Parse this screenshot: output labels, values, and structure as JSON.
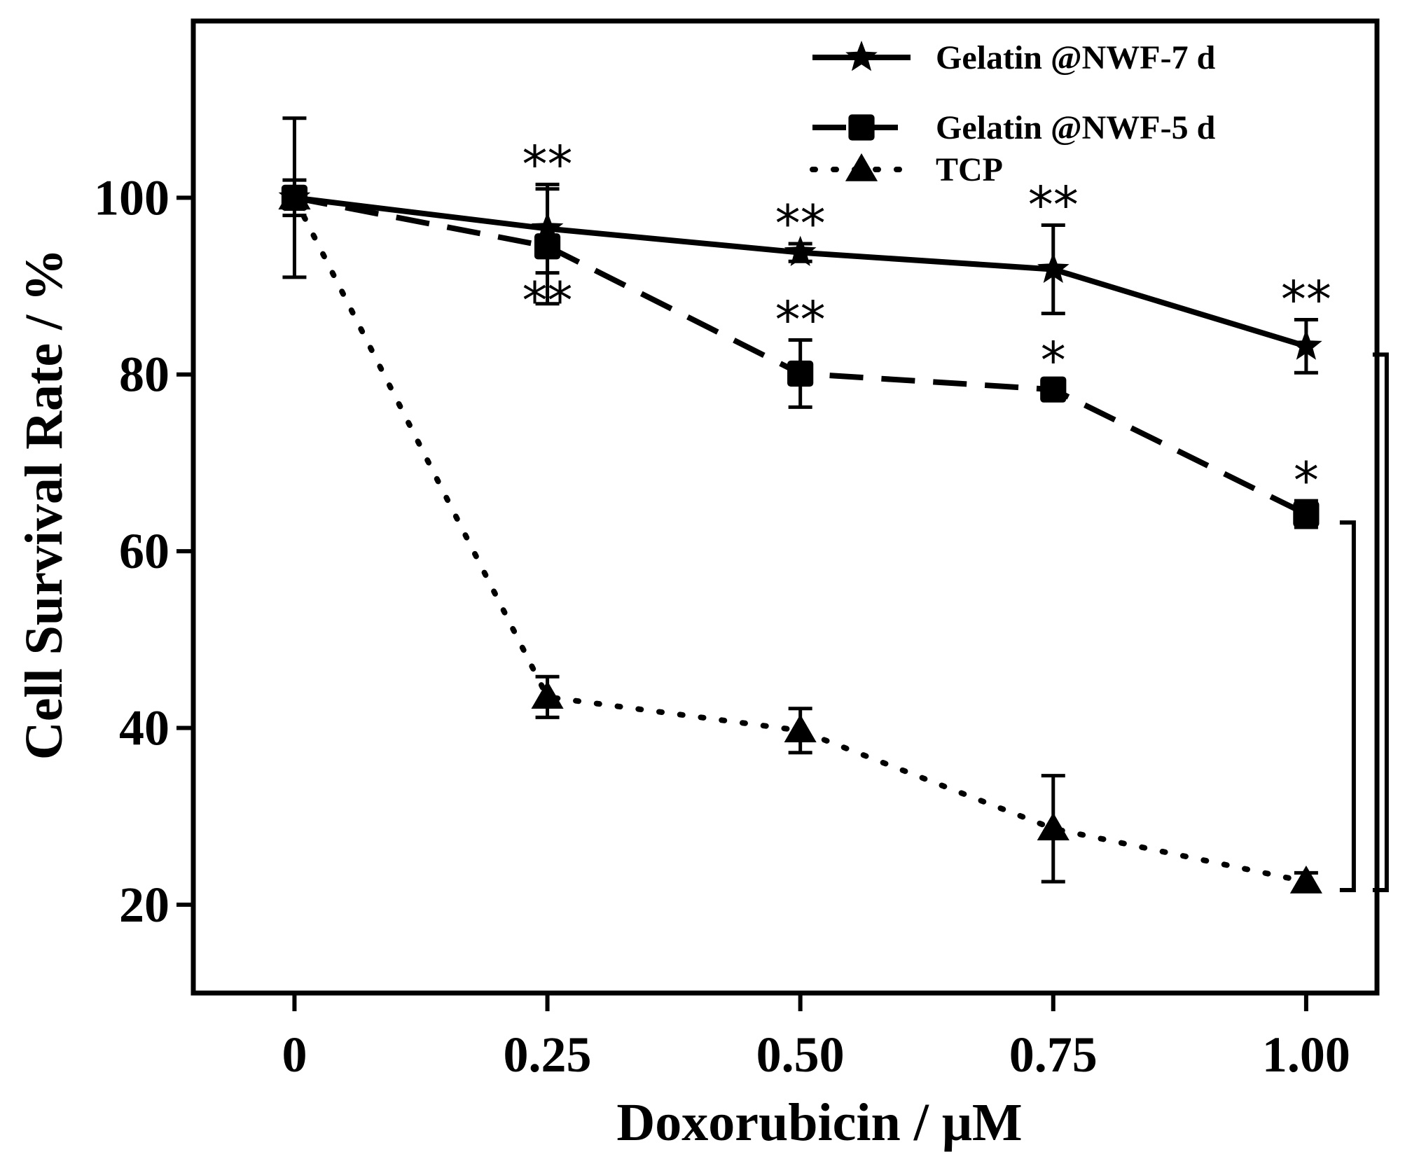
{
  "chart_data": {
    "type": "line",
    "xlabel": "Doxorubicin / μM",
    "ylabel": "Cell Survival Rate / %",
    "x_tick_labels": [
      "0",
      "0.25",
      "0.50",
      "0.75",
      "1.00"
    ],
    "x": [
      0,
      0.25,
      0.5,
      0.75,
      1.0
    ],
    "xlim": [
      -0.1,
      1.07
    ],
    "y_ticks": [
      20,
      40,
      60,
      80,
      100
    ],
    "ylim": [
      10,
      120
    ],
    "grid": false,
    "legend_position": "top-right",
    "series": [
      {
        "name": "Gelatin @NWF-7 d",
        "marker": "star",
        "line_style": "solid",
        "values": [
          100,
          96.5,
          93.8,
          91.9,
          83.2
        ],
        "errors": [
          9,
          5,
          1,
          5,
          3
        ],
        "significance": [
          "",
          "**",
          "**",
          "**",
          "**"
        ]
      },
      {
        "name": "Gelatin @NWF-5 d",
        "marker": "square",
        "line_style": "dashed",
        "values": [
          100,
          94.5,
          80.1,
          78.3,
          64.2
        ],
        "errors": [
          2,
          6.5,
          3.8,
          1,
          1.5
        ],
        "significance": [
          "",
          "**",
          "**",
          "*",
          "*"
        ]
      },
      {
        "name": "TCP",
        "marker": "triangle",
        "line_style": "dotted",
        "values": [
          100,
          43.5,
          39.7,
          28.6,
          22.6
        ],
        "errors": [
          1,
          2.3,
          2.5,
          6,
          1
        ],
        "significance": [
          "",
          "",
          "",
          "",
          ""
        ]
      }
    ],
    "comparison_brackets": [
      {
        "from": "Gelatin @NWF-7 d",
        "to": "TCP",
        "at_x": 1.0
      },
      {
        "from": "Gelatin @NWF-5 d",
        "to": "TCP",
        "at_x": 1.0
      }
    ]
  }
}
